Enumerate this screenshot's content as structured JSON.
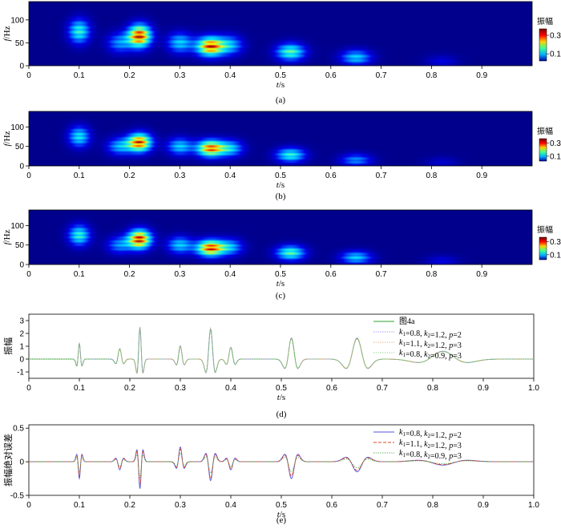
{
  "chart_data": [
    {
      "type": "heatmap",
      "caption": "(a)",
      "xlabel": "t/s",
      "ylabel": "f/Hz",
      "xlim": [
        0,
        1.0
      ],
      "ylim": [
        0,
        140
      ],
      "xticks": [
        "0",
        "0.1",
        "0.2",
        "0.3",
        "0.4",
        "0.5",
        "0.6",
        "0.7",
        "0.8",
        "0.9"
      ],
      "yticks": [
        "0",
        "50",
        "100"
      ],
      "colorbar": {
        "title": "振幅",
        "ticks": [
          "0.3",
          "0.1"
        ],
        "colors": [
          "#7a0000",
          "#ff0000",
          "#ffd000",
          "#40ff90",
          "#00b0ff",
          "#0000a0"
        ]
      },
      "peaks": [
        {
          "t": 0.1,
          "f": 75,
          "amp": 0.55
        },
        {
          "t": 0.18,
          "f": 50,
          "amp": 0.35
        },
        {
          "t": 0.22,
          "f": 65,
          "amp": 1.0
        },
        {
          "t": 0.3,
          "f": 50,
          "amp": 0.45
        },
        {
          "t": 0.36,
          "f": 42,
          "amp": 0.95
        },
        {
          "t": 0.4,
          "f": 45,
          "amp": 0.4
        },
        {
          "t": 0.52,
          "f": 30,
          "amp": 0.6
        },
        {
          "t": 0.65,
          "f": 18,
          "amp": 0.45
        },
        {
          "t": 0.82,
          "f": 8,
          "amp": 0.15
        }
      ]
    },
    {
      "type": "heatmap",
      "caption": "(b)",
      "xlabel": "t/s",
      "ylabel": "f/Hz",
      "xlim": [
        0,
        1.0
      ],
      "ylim": [
        0,
        140
      ],
      "xticks": [
        "0",
        "0.1",
        "0.2",
        "0.3",
        "0.4",
        "0.5",
        "0.6",
        "0.7",
        "0.8",
        "0.9"
      ],
      "yticks": [
        "0",
        "50",
        "100"
      ],
      "colorbar": {
        "title": "振幅",
        "ticks": [
          "0.3",
          "0.1"
        ],
        "colors": [
          "#7a0000",
          "#ff0000",
          "#ffd000",
          "#40ff90",
          "#00b0ff",
          "#0000a0"
        ]
      },
      "peaks": [
        {
          "t": 0.1,
          "f": 75,
          "amp": 0.5
        },
        {
          "t": 0.18,
          "f": 50,
          "amp": 0.4
        },
        {
          "t": 0.22,
          "f": 60,
          "amp": 0.95
        },
        {
          "t": 0.3,
          "f": 50,
          "amp": 0.45
        },
        {
          "t": 0.36,
          "f": 45,
          "amp": 0.9
        },
        {
          "t": 0.4,
          "f": 45,
          "amp": 0.45
        },
        {
          "t": 0.52,
          "f": 28,
          "amp": 0.55
        },
        {
          "t": 0.65,
          "f": 15,
          "amp": 0.35
        },
        {
          "t": 0.82,
          "f": 8,
          "amp": 0.12
        }
      ]
    },
    {
      "type": "heatmap",
      "caption": "(c)",
      "xlabel": "t/s",
      "ylabel": "f/Hz",
      "xlim": [
        0,
        1.0
      ],
      "ylim": [
        0,
        140
      ],
      "xticks": [
        "0",
        "0.1",
        "0.2",
        "0.3",
        "0.4",
        "0.5",
        "0.6",
        "0.7",
        "0.8",
        "0.9"
      ],
      "yticks": [
        "0",
        "50",
        "100"
      ],
      "colorbar": {
        "title": "振幅",
        "ticks": [
          "0.3",
          "0.1"
        ],
        "colors": [
          "#7a0000",
          "#ff0000",
          "#ffd000",
          "#40ff90",
          "#00b0ff",
          "#0000a0"
        ]
      },
      "peaks": [
        {
          "t": 0.1,
          "f": 75,
          "amp": 0.55
        },
        {
          "t": 0.18,
          "f": 50,
          "amp": 0.35
        },
        {
          "t": 0.22,
          "f": 65,
          "amp": 1.0
        },
        {
          "t": 0.3,
          "f": 50,
          "amp": 0.45
        },
        {
          "t": 0.36,
          "f": 42,
          "amp": 0.95
        },
        {
          "t": 0.4,
          "f": 45,
          "amp": 0.4
        },
        {
          "t": 0.52,
          "f": 30,
          "amp": 0.6
        },
        {
          "t": 0.65,
          "f": 18,
          "amp": 0.45
        },
        {
          "t": 0.82,
          "f": 8,
          "amp": 0.15
        }
      ]
    },
    {
      "type": "line",
      "caption": "(d)",
      "xlabel": "t/s",
      "ylabel": "振幅",
      "xlim": [
        0,
        1.0
      ],
      "ylim": [
        -1.5,
        3.5
      ],
      "xticks": [
        "0",
        "0.1",
        "0.2",
        "0.3",
        "0.4",
        "0.5",
        "0.6",
        "0.7",
        "0.8",
        "0.9",
        "1.0"
      ],
      "yticks": [
        "-1",
        "0",
        "1",
        "2",
        "3"
      ],
      "wavelets": [
        {
          "t": 0.1,
          "amp": 1.2,
          "f": 75
        },
        {
          "t": 0.18,
          "amp": 0.8,
          "f": 50
        },
        {
          "t": 0.22,
          "amp": 2.4,
          "f": 65
        },
        {
          "t": 0.3,
          "amp": 1.0,
          "f": 50
        },
        {
          "t": 0.36,
          "amp": 2.3,
          "f": 42
        },
        {
          "t": 0.4,
          "amp": 0.9,
          "f": 45
        },
        {
          "t": 0.52,
          "amp": 1.6,
          "f": 30
        },
        {
          "t": 0.65,
          "amp": 1.6,
          "f": 18
        },
        {
          "t": 0.82,
          "amp": 0.6,
          "f": 8
        }
      ],
      "series": [
        {
          "name": "图4a",
          "color": "#2ca02c",
          "style": "solid",
          "scale": 1.0
        },
        {
          "name": "k1=0.8, k2=1.2, p=2",
          "label_parts": [
            "k",
            "1",
            "=0.8, ",
            "k",
            "2",
            "=1.2, ",
            "p",
            "=2"
          ],
          "color": "#8888ff",
          "style": "dotted",
          "scale": 1.05
        },
        {
          "name": "k1=1.1, k2=1.2, p=3",
          "label_parts": [
            "k",
            "1",
            "=1.1, ",
            "k",
            "2",
            "=1.2, ",
            "p",
            "=3"
          ],
          "color": "#e8a070",
          "style": "dotted",
          "scale": 1.02
        },
        {
          "name": "k1=0.8, k2=0.9, p=3",
          "label_parts": [
            "k",
            "1",
            "=0.8, ",
            "k",
            "2",
            "=0.9, ",
            "p",
            "=3"
          ],
          "color": "#88cc88",
          "style": "dotted",
          "scale": 0.98
        }
      ]
    },
    {
      "type": "line",
      "caption": "(e)",
      "xlabel": "t/s",
      "ylabel": "振幅绝对误差",
      "xlim": [
        0,
        1.0
      ],
      "ylim": [
        -0.5,
        0.55
      ],
      "xticks": [
        "0",
        "0.1",
        "0.2",
        "0.3",
        "0.4",
        "0.5",
        "0.6",
        "0.7",
        "0.8",
        "0.9",
        "1.0"
      ],
      "yticks": [
        "-0.5",
        "0",
        "0.5"
      ],
      "wavelets": [
        {
          "t": 0.1,
          "amp": -0.25,
          "f": 75
        },
        {
          "t": 0.18,
          "amp": -0.12,
          "f": 50
        },
        {
          "t": 0.22,
          "amp": -0.4,
          "f": 65
        },
        {
          "t": 0.3,
          "amp": 0.22,
          "f": 50
        },
        {
          "t": 0.36,
          "amp": -0.28,
          "f": 42
        },
        {
          "t": 0.4,
          "amp": -0.12,
          "f": 45
        },
        {
          "t": 0.52,
          "amp": -0.25,
          "f": 30
        },
        {
          "t": 0.65,
          "amp": -0.15,
          "f": 18
        },
        {
          "t": 0.82,
          "amp": -0.05,
          "f": 8
        }
      ],
      "series": [
        {
          "name": "k1=0.8, k2=1.2, p=2",
          "label_parts": [
            "k",
            "1",
            "=0.8, ",
            "k",
            "2",
            "=1.2, ",
            "p",
            "=2"
          ],
          "color": "#5555dd",
          "style": "solid",
          "scale": 1.0
        },
        {
          "name": "k1=1.1, k2=1.2, p=3",
          "label_parts": [
            "k",
            "1",
            "=1.1, ",
            "k",
            "2",
            "=1.2, ",
            "p",
            "=3"
          ],
          "color": "#dd4422",
          "style": "dashed",
          "scale": 0.85
        },
        {
          "name": "k1=0.8, k2=0.9, p=3",
          "label_parts": [
            "k",
            "1",
            "=0.8, ",
            "k",
            "2",
            "=0.9, ",
            "p",
            "=3"
          ],
          "color": "#44aa44",
          "style": "dotted",
          "scale": 0.6
        }
      ]
    }
  ]
}
